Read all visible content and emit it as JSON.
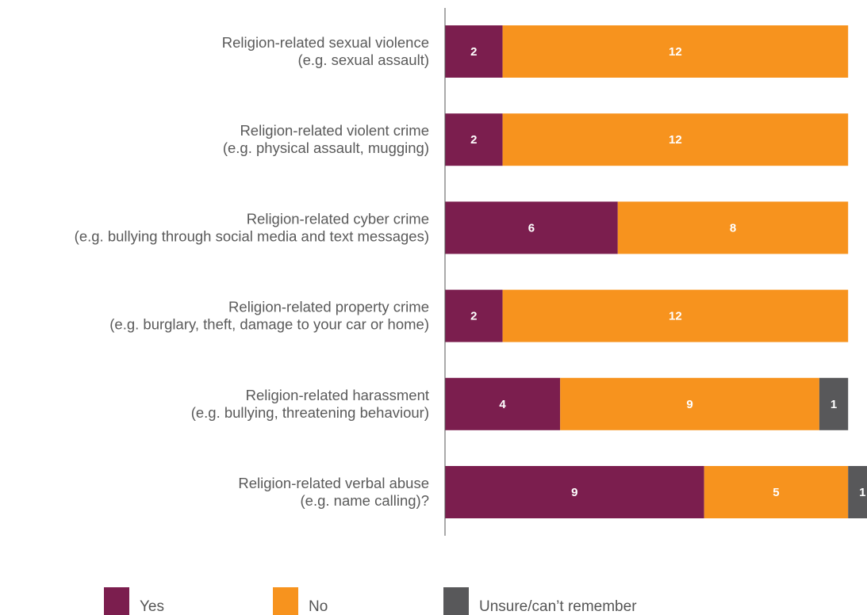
{
  "chart_data": {
    "type": "bar",
    "orientation": "horizontal",
    "stacked": true,
    "title": "",
    "xlabel": "",
    "ylabel": "",
    "grid": false,
    "legend_position": "bottom",
    "categories": [
      [
        "Religion-related sexual violence",
        "(e.g. sexual assault)"
      ],
      [
        "Religion-related violent crime",
        "(e.g. physical assault, mugging)"
      ],
      [
        "Religion-related cyber crime",
        "(e.g. bullying through social media and text messages)"
      ],
      [
        "Religion-related property crime",
        "(e.g. burglary, theft, damage to your car or home)"
      ],
      [
        "Religion-related harassment",
        "(e.g. bullying, threatening behaviour)"
      ],
      [
        "Religion-related verbal abuse",
        "(e.g. name calling)?"
      ]
    ],
    "series": [
      {
        "name": "Yes",
        "color": "#7b1e4e",
        "values": [
          2,
          2,
          6,
          2,
          4,
          9
        ]
      },
      {
        "name": "No",
        "color": "#f7931e",
        "values": [
          12,
          12,
          8,
          12,
          9,
          5
        ]
      },
      {
        "name": "Unsure/can’t remember",
        "color": "#58585a",
        "values": [
          0,
          0,
          0,
          0,
          1,
          1
        ]
      }
    ]
  }
}
